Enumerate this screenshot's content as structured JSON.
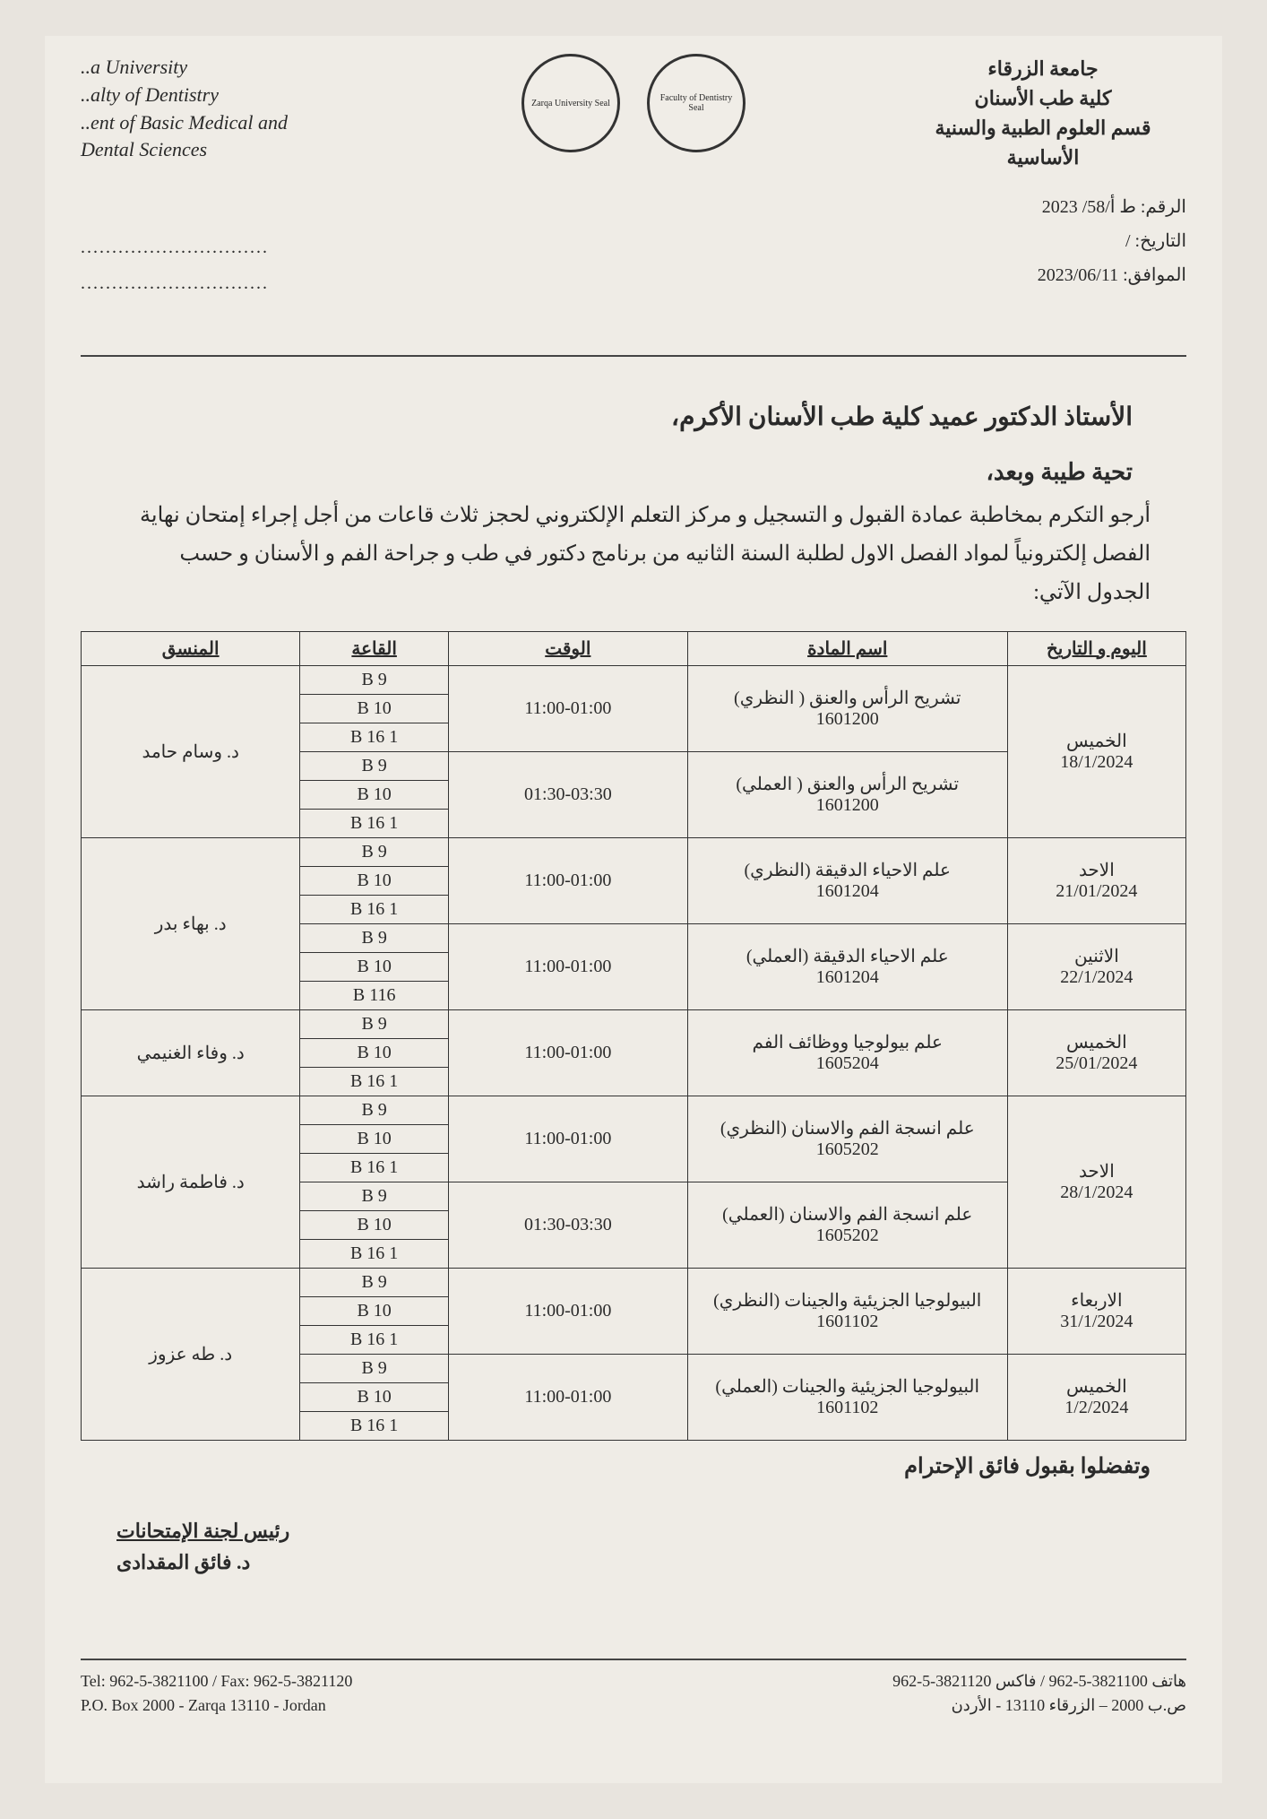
{
  "header": {
    "left_en": "..a University\n..alty of Dentistry\n..ent of Basic Medical and\nDental Sciences",
    "right_ar": "جامعة الزرقاء\nكلية طب الأسنان\nقسم العلوم الطبية والسنية الأساسية",
    "logo1_alt": "Zarqa University Seal",
    "logo2_alt": "Faculty of Dentistry Seal"
  },
  "ref": {
    "number_label": "الرقم: ط أ/58/ 2023",
    "date_label": "التاريخ:    /",
    "corresponding_label": "الموافق: 2023/06/11"
  },
  "dots": "..............................\n..............................",
  "addressee": "الأستاذ الدكتور عميد كلية طب الأسنان الأكرم،",
  "greeting": "تحية طيبة وبعد،",
  "body": "أرجو التكرم بمخاطبة عمادة القبول و التسجيل و مركز التعلم الإلكتروني لحجز ثلاث قاعات من أجل إجراء إمتحان نهاية الفصل إلكترونياً لمواد الفصل الاول لطلبة السنة الثانيه من برنامج دكتور في طب  و جراحة الفم و الأسنان و حسب الجدول الآتي:",
  "table": {
    "headers": {
      "date": "اليوم و التاريخ",
      "subject": "اسم المادة",
      "time": "الوقت",
      "hall": "القاعة",
      "coordinator": "المنسق"
    },
    "halls_set": [
      "B  9",
      "B  10",
      "B 16 1"
    ],
    "halls_set_alt": [
      "9 B",
      "10 B",
      "116 B"
    ],
    "groups": [
      {
        "coordinator": "د. وسام حامد",
        "blocks": [
          {
            "day": "الخميس",
            "date": "18/1/2024",
            "subject": "تشريح الرأس والعنق ( النظري)",
            "code": "1601200",
            "time": "11:00-01:00",
            "halls": "std",
            "date_rowspan": 6
          },
          {
            "day": "",
            "date": "",
            "subject": "تشريح الرأس والعنق ( العملي)",
            "code": "1601200",
            "time": "01:30-03:30",
            "halls": "std"
          }
        ]
      },
      {
        "coordinator": "د. بهاء بدر",
        "blocks": [
          {
            "day": "الاحد",
            "date": "21/01/2024",
            "subject": "علم الاحياء الدقيقة (النظري)",
            "code": "1601204",
            "time": "11:00-01:00",
            "halls": "std",
            "date_rowspan": 3
          },
          {
            "day": "الاثنين",
            "date": "22/1/2024",
            "subject": "علم الاحياء الدقيقة (العملي)",
            "code": "1601204",
            "time": "11:00-01:00",
            "halls": "alt",
            "date_rowspan": 3
          }
        ]
      },
      {
        "coordinator": "د. وفاء الغنيمي",
        "blocks": [
          {
            "day": "الخميس",
            "date": "25/01/2024",
            "subject": "علم بيولوجيا ووظائف الفم",
            "code": "1605204",
            "time": "11:00-01:00",
            "halls": "std",
            "date_rowspan": 3
          }
        ]
      },
      {
        "coordinator": "د. فاطمة راشد",
        "blocks": [
          {
            "day": "الاحد",
            "date": "28/1/2024",
            "subject": "علم انسجة الفم والاسنان (النظري)",
            "code": "1605202",
            "time": "11:00-01:00",
            "halls": "std",
            "date_rowspan": 6
          },
          {
            "day": "",
            "date": "",
            "subject": "علم انسجة الفم والاسنان (العملي)",
            "code": "1605202",
            "time": "01:30-03:30",
            "halls": "std"
          }
        ]
      },
      {
        "coordinator": "د. طه عزوز",
        "blocks": [
          {
            "day": "الاربعاء",
            "date": "31/1/2024",
            "subject": "البيولوجيا الجزيئية والجينات (النظري)",
            "code": "1601102",
            "time": "11:00-01:00",
            "halls": "std",
            "date_rowspan": 3
          },
          {
            "day": "الخميس",
            "date": "1/2/2024",
            "subject": "البيولوجيا الجزيئية والجينات (العملي)",
            "code": "1601102",
            "time": "11:00-01:00",
            "halls": "std",
            "date_rowspan": 3
          }
        ]
      }
    ]
  },
  "closing": "وتفضلوا بقبول فائق الإحترام",
  "signature": {
    "title": "رئيس لجنة الإمتحانات",
    "name": "د. فائق المقدادى"
  },
  "footer": {
    "left": "Tel: 962-5-3821100 / Fax: 962-5-3821120\nP.O. Box 2000 - Zarqa 13110 - Jordan",
    "right": "هاتف 3821100-5-962 / فاكس 3821120-5-962\nص.ب 2000 – الزرقاء 13110 - الأردن"
  }
}
